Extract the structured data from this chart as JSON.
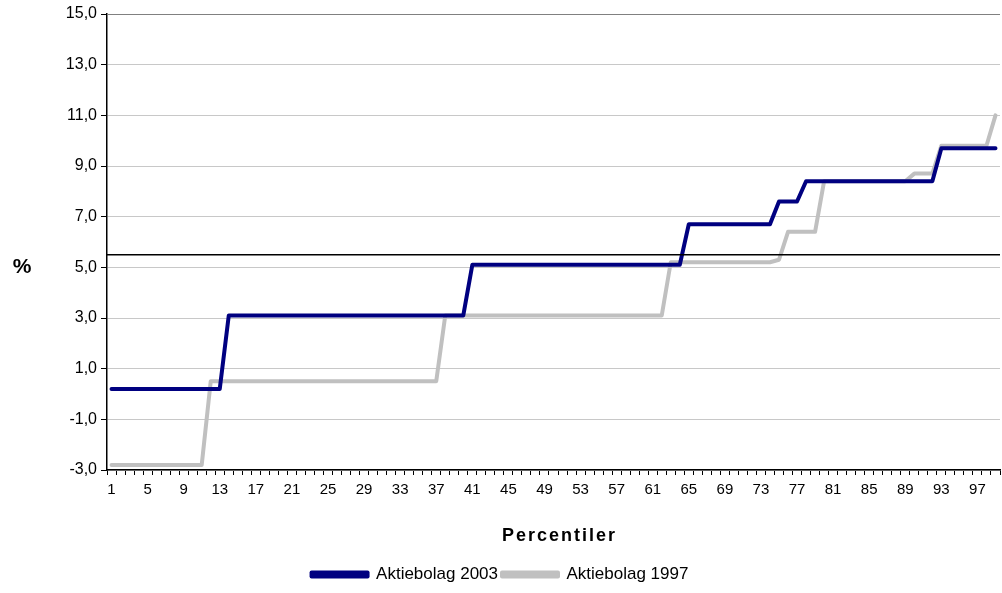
{
  "chart_data": {
    "type": "line",
    "xlabel": "Percentiler",
    "ylabel": "%",
    "categories": [
      "1",
      null,
      null,
      null,
      "5",
      null,
      null,
      null,
      "9",
      null,
      null,
      null,
      "13",
      null,
      null,
      null,
      "17",
      null,
      null,
      null,
      "21",
      null,
      null,
      null,
      "25",
      null,
      null,
      null,
      "29",
      null,
      null,
      null,
      "33",
      null,
      null,
      null,
      "37",
      null,
      null,
      null,
      "41",
      null,
      null,
      null,
      "45",
      null,
      null,
      null,
      "49",
      null,
      null,
      null,
      "53",
      null,
      null,
      null,
      "57",
      null,
      null,
      null,
      "61",
      null,
      null,
      null,
      "65",
      null,
      null,
      null,
      "69",
      null,
      null,
      null,
      "73",
      null,
      null,
      null,
      "77",
      null,
      null,
      null,
      "81",
      null,
      null,
      null,
      "85",
      null,
      null,
      null,
      "89",
      null,
      null,
      null,
      "93",
      null,
      null,
      null,
      "97",
      null,
      null
    ],
    "series": [
      {
        "name": "Aktiebolag 2003",
        "color": "#000080",
        "values": [
          0.2,
          0.2,
          0.2,
          0.2,
          0.2,
          0.2,
          0.2,
          0.2,
          0.2,
          0.2,
          0.2,
          0.2,
          0.2,
          3.1,
          3.1,
          3.1,
          3.1,
          3.1,
          3.1,
          3.1,
          3.1,
          3.1,
          3.1,
          3.1,
          3.1,
          3.1,
          3.1,
          3.1,
          3.1,
          3.1,
          3.1,
          3.1,
          3.1,
          3.1,
          3.1,
          3.1,
          3.1,
          3.1,
          3.1,
          3.1,
          5.1,
          5.1,
          5.1,
          5.1,
          5.1,
          5.1,
          5.1,
          5.1,
          5.1,
          5.1,
          5.1,
          5.1,
          5.1,
          5.1,
          5.1,
          5.1,
          5.1,
          5.1,
          5.1,
          5.1,
          5.1,
          5.1,
          5.1,
          5.1,
          6.7,
          6.7,
          6.7,
          6.7,
          6.7,
          6.7,
          6.7,
          6.7,
          6.7,
          6.7,
          7.6,
          7.6,
          7.6,
          8.4,
          8.4,
          8.4,
          8.4,
          8.4,
          8.4,
          8.4,
          8.4,
          8.4,
          8.4,
          8.4,
          8.4,
          8.4,
          8.4,
          8.4,
          9.7,
          9.7,
          9.7,
          9.7,
          9.7,
          9.7,
          9.7
        ]
      },
      {
        "name": "Aktiebolag 1997",
        "color": "#c0c0c0",
        "values": [
          -2.8,
          -2.8,
          -2.8,
          -2.8,
          -2.8,
          -2.8,
          -2.8,
          -2.8,
          -2.8,
          -2.8,
          -2.8,
          0.5,
          0.5,
          0.5,
          0.5,
          0.5,
          0.5,
          0.5,
          0.5,
          0.5,
          0.5,
          0.5,
          0.5,
          0.5,
          0.5,
          0.5,
          0.5,
          0.5,
          0.5,
          0.5,
          0.5,
          0.5,
          0.5,
          0.5,
          0.5,
          0.5,
          0.5,
          3.1,
          3.1,
          3.1,
          3.1,
          3.1,
          3.1,
          3.1,
          3.1,
          3.1,
          3.1,
          3.1,
          3.1,
          3.1,
          3.1,
          3.1,
          3.1,
          3.1,
          3.1,
          3.1,
          3.1,
          3.1,
          3.1,
          3.1,
          3.1,
          3.1,
          5.2,
          5.2,
          5.2,
          5.2,
          5.2,
          5.2,
          5.2,
          5.2,
          5.2,
          5.2,
          5.2,
          5.2,
          5.3,
          6.4,
          6.4,
          6.4,
          6.4,
          8.4,
          8.4,
          8.4,
          8.4,
          8.4,
          8.4,
          8.4,
          8.4,
          8.4,
          8.4,
          8.7,
          8.7,
          8.7,
          9.8,
          9.8,
          9.8,
          9.8,
          9.8,
          9.8,
          11.0
        ]
      }
    ],
    "ylim": [
      -3,
      15
    ],
    "yticks": [
      {
        "value": -3,
        "label": "-3,0"
      },
      {
        "value": -1,
        "label": "-1,0"
      },
      {
        "value": 1,
        "label": "1,0"
      },
      {
        "value": 3,
        "label": "3,0"
      },
      {
        "value": 5,
        "label": "5,0"
      },
      {
        "value": 7,
        "label": "7,0"
      },
      {
        "value": 9,
        "label": "9,0"
      },
      {
        "value": 11,
        "label": "11,0"
      },
      {
        "value": 13,
        "label": "13,0"
      },
      {
        "value": 15,
        "label": "15,0"
      }
    ],
    "ref_lines": [
      {
        "axis": "y",
        "value": 5.5,
        "color": "#000000"
      }
    ],
    "grid": "y",
    "legend": "bottom",
    "marker": "none",
    "line_style": "solid"
  }
}
